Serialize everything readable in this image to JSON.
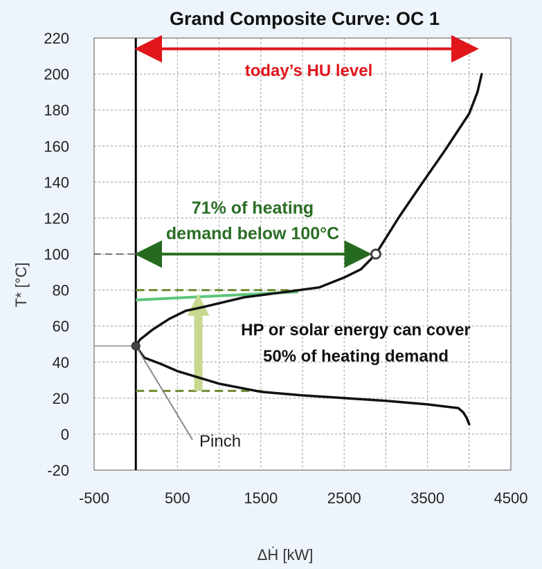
{
  "chart_data": {
    "type": "line",
    "title": "Grand Composite Curve: OC 1",
    "xlabel": "ΔḢ [kW]",
    "ylabel": "T* [°C]",
    "xlim": [
      -500,
      4500
    ],
    "ylim": [
      -20,
      220
    ],
    "x_ticks": [
      -500,
      500,
      1500,
      2500,
      3500,
      4500
    ],
    "y_ticks": [
      -20,
      0,
      20,
      40,
      60,
      80,
      100,
      120,
      140,
      160,
      180,
      200,
      220
    ],
    "grid": true,
    "series": [
      {
        "line_color": "#111111",
        "points": [
          [
            4000,
            5.5
          ],
          [
            3970,
            9
          ],
          [
            3930,
            12
          ],
          [
            3870,
            14.5
          ],
          [
            3500,
            16.5
          ],
          [
            3000,
            18.5
          ],
          [
            2500,
            20
          ],
          [
            2000,
            21.5
          ],
          [
            1500,
            23.5
          ],
          [
            1000,
            28
          ],
          [
            500,
            35
          ],
          [
            300,
            39
          ],
          [
            100,
            42.5
          ],
          [
            0,
            49
          ],
          [
            50,
            52.5
          ],
          [
            200,
            58
          ],
          [
            400,
            64
          ],
          [
            600,
            68.5
          ],
          [
            800,
            70.5
          ],
          [
            1300,
            76
          ],
          [
            1800,
            79
          ],
          [
            2200,
            81.5
          ],
          [
            2500,
            87
          ],
          [
            2700,
            91.5
          ],
          [
            2880,
            100
          ],
          [
            3150,
            120
          ],
          [
            3400,
            137
          ],
          [
            3700,
            157
          ],
          [
            4000,
            178
          ],
          [
            4100,
            190
          ],
          [
            4150,
            200
          ]
        ]
      }
    ],
    "markers": {
      "pinch": {
        "x": 0,
        "y": 49
      },
      "open_point": {
        "x": 2880,
        "y": 100
      }
    },
    "reference_lines": {
      "upper_dashed_y": 80,
      "lower_dashed_y": 24,
      "dashed_x_range": [
        0,
        1550
      ],
      "upper_dashed_x_range": [
        0,
        2000
      ],
      "solid_green_line": [
        [
          0,
          74.5
        ],
        [
          1950,
          79
        ]
      ],
      "hp_arrow": {
        "x": 750,
        "from_y": 24,
        "to_y": 78
      },
      "hu_arrow": {
        "from_x": 0,
        "to_x": 4100,
        "y": 214
      },
      "below100_arrow": {
        "from_x": 0,
        "to_x": 2800,
        "y": 100
      }
    },
    "annotations": {
      "hu_level": "today’s HU level",
      "below100_line1": "71% of heating",
      "below100_line2": "demand below 100°C",
      "cover_line1": "HP or solar energy can cover",
      "cover_line2": "50% of heating demand",
      "pinch": "Pinch"
    },
    "colors": {
      "red": "#e0161b",
      "dark_green": "#256b1f",
      "olive_dashed": "#6d8b2e",
      "light_green_line": "#5cc67c",
      "light_green_arrow": "#c7d98e"
    }
  }
}
